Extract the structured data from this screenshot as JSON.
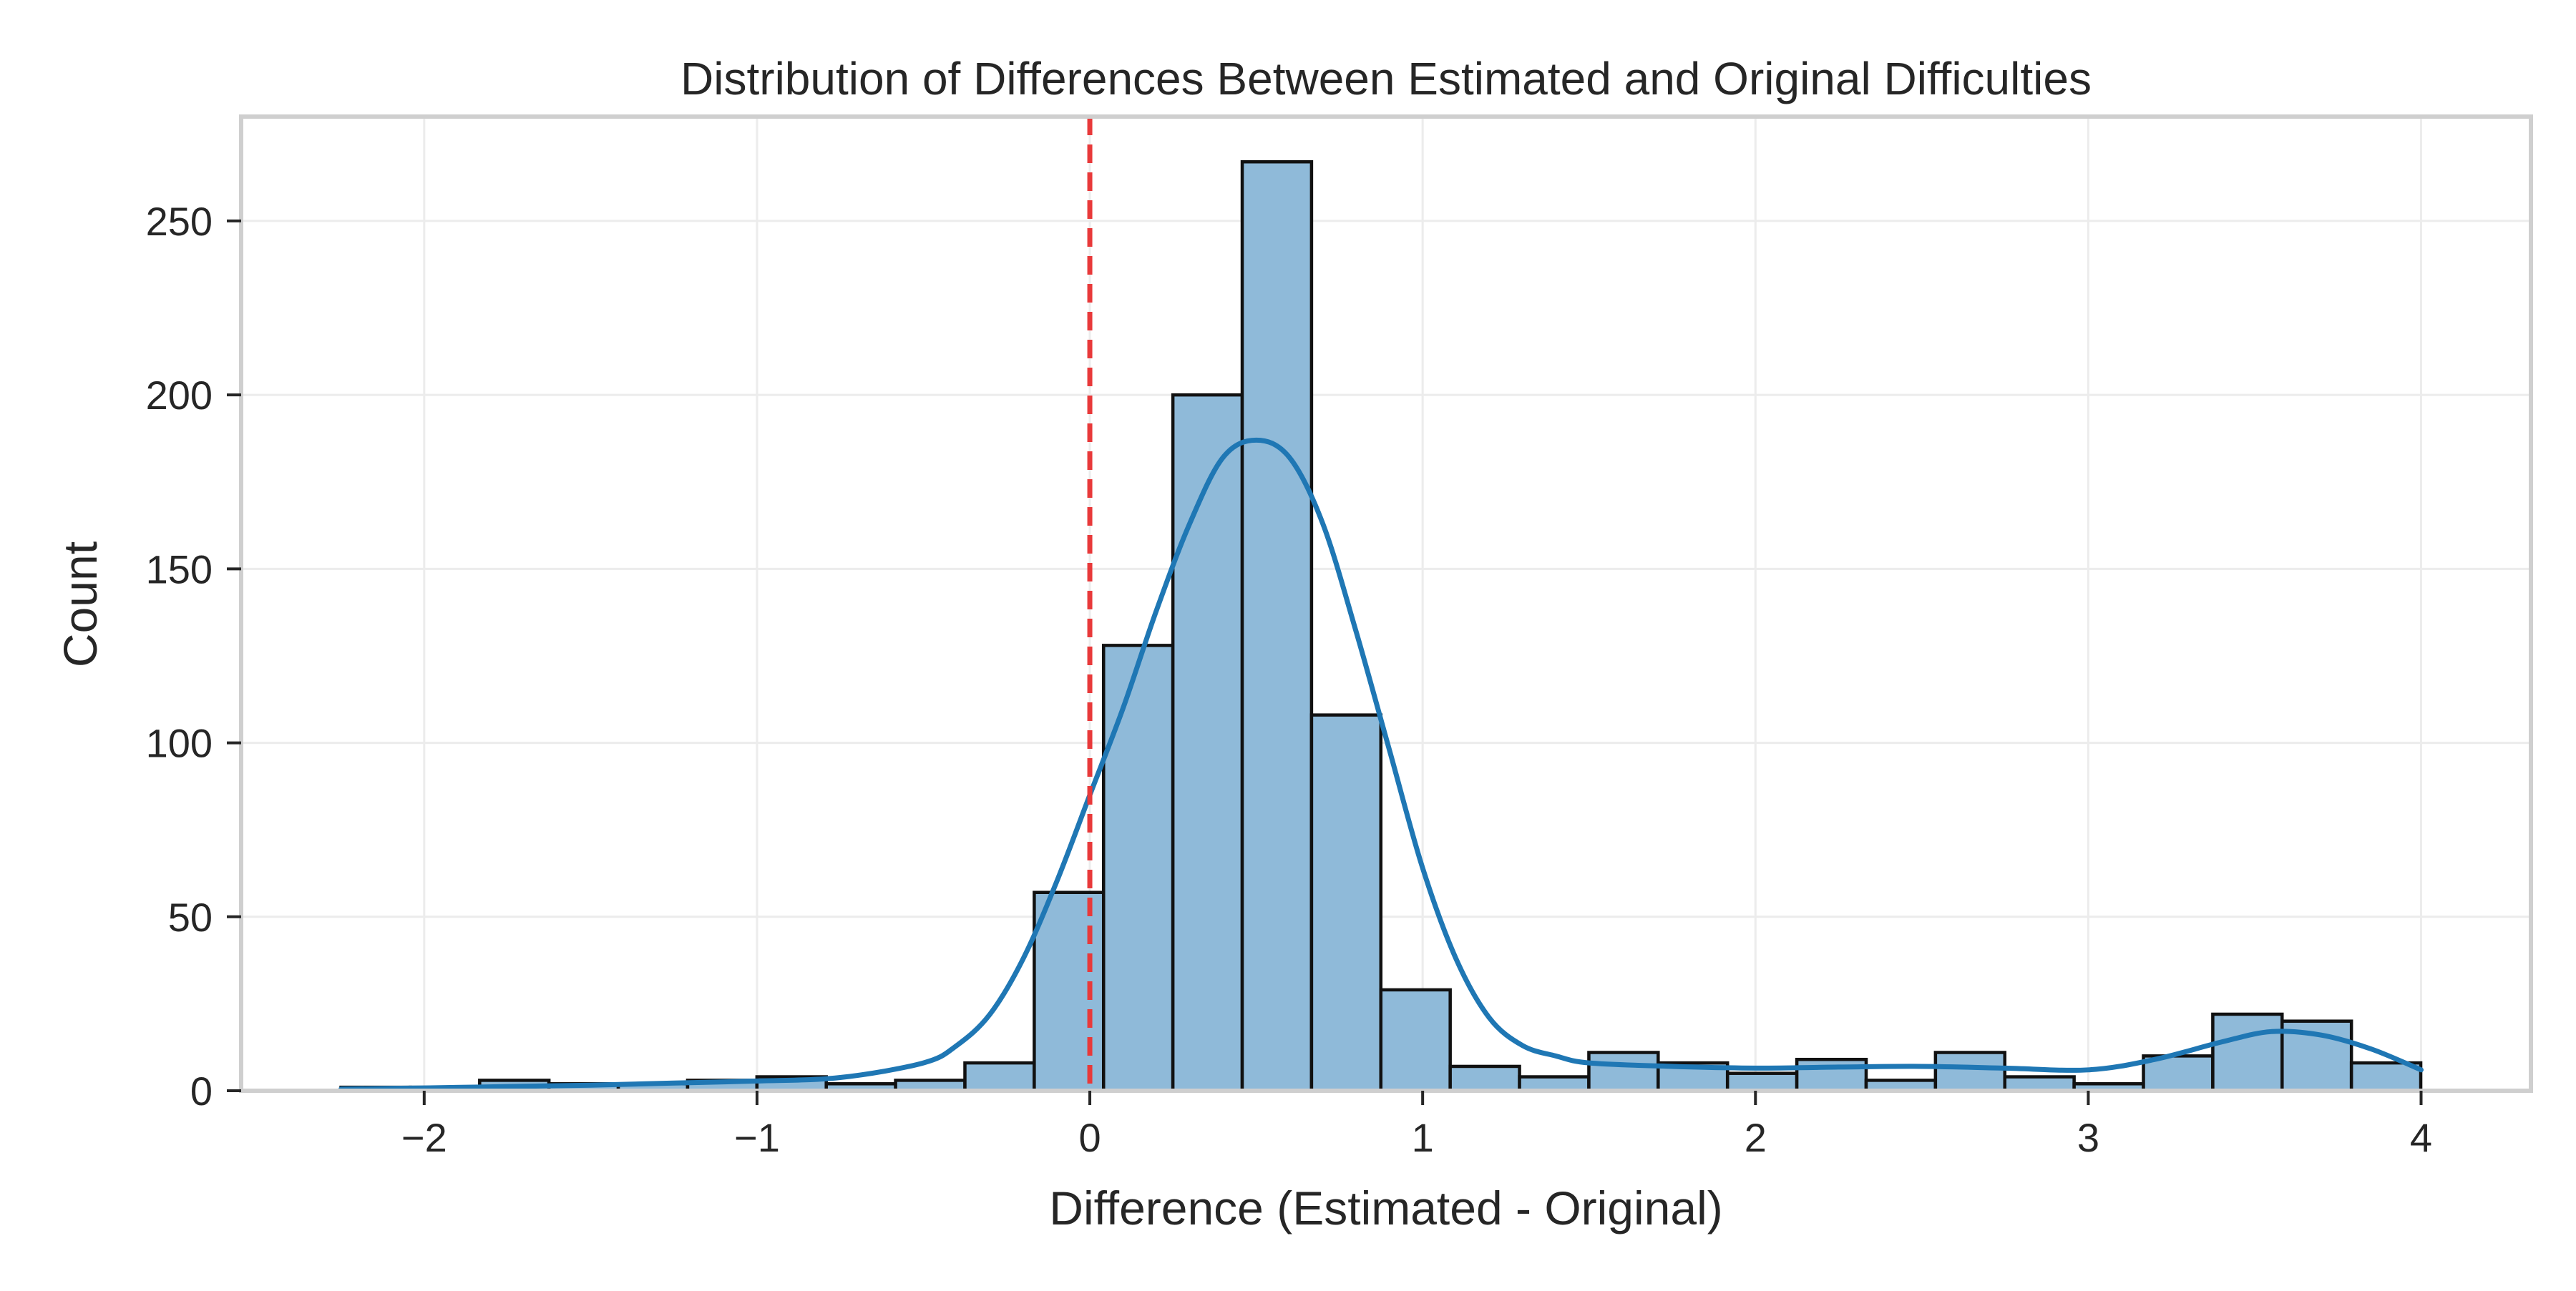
{
  "chart_data": {
    "type": "bar",
    "subtype": "histogram",
    "title": "Distribution of Differences Between Estimated and Original Difficulties",
    "xlabel": "Difference (Estimated - Original)",
    "ylabel": "Count",
    "xlim": [
      -2.55,
      4.33
    ],
    "ylim": [
      0,
      280
    ],
    "xticks": [
      -2,
      -1,
      0,
      1,
      2,
      3,
      4
    ],
    "xtick_labels": [
      "−2",
      "−1",
      "0",
      "1",
      "2",
      "3",
      "4"
    ],
    "yticks": [
      0,
      50,
      100,
      150,
      200,
      250
    ],
    "ytick_labels": [
      "0",
      "50",
      "100",
      "150",
      "200",
      "250"
    ],
    "grid": true,
    "bin_start": -2.25,
    "bin_width": 0.2083,
    "counts": [
      1,
      1,
      3,
      2,
      2,
      3,
      4,
      2,
      3,
      8,
      57,
      128,
      200,
      267,
      108,
      29,
      7,
      4,
      11,
      8,
      5,
      9,
      3,
      11,
      4,
      2,
      10,
      22,
      20,
      8
    ],
    "kde": {
      "x": [
        -2.25,
        -2.0,
        -1.75,
        -1.5,
        -1.25,
        -1.0,
        -0.75,
        -0.5,
        -0.4,
        -0.3,
        -0.2,
        -0.1,
        0.0,
        0.1,
        0.2,
        0.3,
        0.4,
        0.5,
        0.6,
        0.7,
        0.8,
        0.9,
        1.0,
        1.1,
        1.2,
        1.3,
        1.4,
        1.5,
        1.75,
        2.0,
        2.25,
        2.5,
        2.75,
        3.0,
        3.2,
        3.4,
        3.55,
        3.7,
        3.85,
        4.0
      ],
      "y": [
        0.5,
        0.8,
        1.2,
        1.6,
        2.2,
        2.8,
        3.8,
        8,
        13,
        22,
        38,
        60,
        85,
        110,
        138,
        163,
        182,
        187,
        182,
        163,
        132,
        98,
        64,
        38,
        21,
        13,
        10,
        8,
        7,
        6.5,
        6.8,
        7,
        6.5,
        6,
        9,
        14,
        17,
        16,
        12,
        6
      ]
    },
    "reference_line": {
      "x": 0,
      "style": "dashed",
      "color": "#e8393a"
    },
    "colors": {
      "bar_fill": "#8fbad9",
      "bar_edge": "#111111",
      "kde_line": "#1f77b4",
      "grid": "#ececec",
      "frame": "#cfcfcf"
    }
  }
}
